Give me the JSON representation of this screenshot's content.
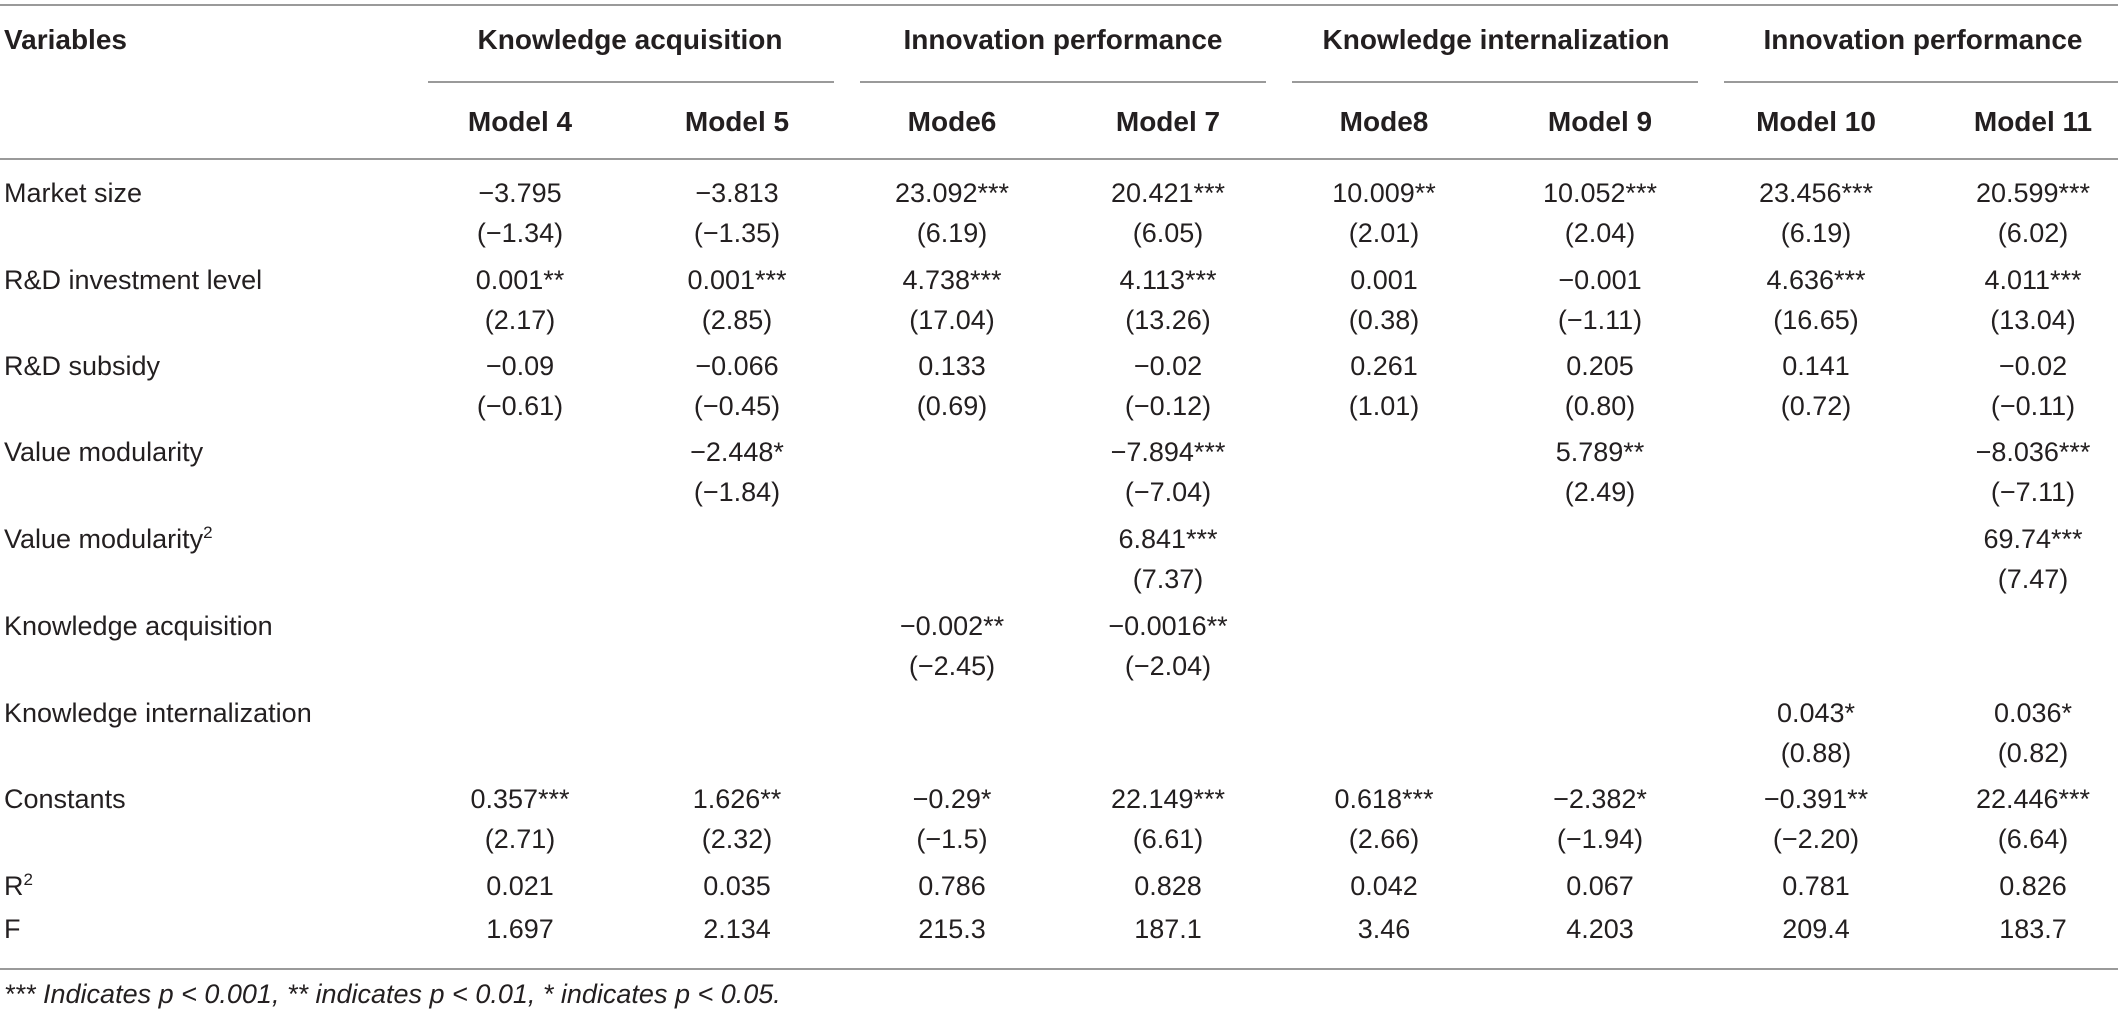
{
  "header": {
    "variables_label": "Variables",
    "groups": [
      "Knowledge acquisition",
      "Innovation performance",
      "Knowledge internalization",
      "Innovation performance"
    ],
    "models": [
      "Model 4",
      "Model 5",
      "Mode6",
      "Model 7",
      "Mode8",
      "Model 9",
      "Model 10",
      "Model 11"
    ]
  },
  "rows": [
    {
      "label": "Market size",
      "coef": [
        "−3.795",
        "−3.813",
        "23.092***",
        "20.421***",
        "10.009**",
        "10.052***",
        "23.456***",
        "20.599***"
      ],
      "t": [
        "(−1.34)",
        "(−1.35)",
        "(6.19)",
        "(6.05)",
        "(2.01)",
        "(2.04)",
        "(6.19)",
        "(6.02)"
      ]
    },
    {
      "label": "R&D investment level",
      "coef": [
        "0.001**",
        "0.001***",
        "4.738***",
        "4.113***",
        "0.001",
        "−0.001",
        "4.636***",
        "4.011***"
      ],
      "t": [
        "(2.17)",
        "(2.85)",
        "(17.04)",
        "(13.26)",
        "(0.38)",
        "(−1.11)",
        "(16.65)",
        "(13.04)"
      ]
    },
    {
      "label": "R&D subsidy",
      "coef": [
        "−0.09",
        "−0.066",
        "0.133",
        "−0.02",
        "0.261",
        "0.205",
        "0.141",
        "−0.02"
      ],
      "t": [
        "(−0.61)",
        "(−0.45)",
        "(0.69)",
        "(−0.12)",
        "(1.01)",
        "(0.80)",
        "(0.72)",
        "(−0.11)"
      ]
    },
    {
      "label": "Value modularity",
      "coef": [
        "",
        "−2.448*",
        "",
        "−7.894***",
        "",
        "5.789**",
        "",
        "−8.036***"
      ],
      "t": [
        "",
        "(−1.84)",
        "",
        "(−7.04)",
        "",
        "(2.49)",
        "",
        "(−7.11)"
      ]
    },
    {
      "label": "Value modularity",
      "sup": "2",
      "coef": [
        "",
        "",
        "",
        "6.841***",
        "",
        "",
        "",
        "69.74***"
      ],
      "t": [
        "",
        "",
        "",
        "(7.37)",
        "",
        "",
        "",
        "(7.47)"
      ]
    },
    {
      "label": "Knowledge acquisition",
      "coef": [
        "",
        "",
        "−0.002**",
        "−0.0016**",
        "",
        "",
        "",
        ""
      ],
      "t": [
        "",
        "",
        "(−2.45)",
        "(−2.04)",
        "",
        "",
        "",
        ""
      ]
    },
    {
      "label": "Knowledge internalization",
      "coef": [
        "",
        "",
        "",
        "",
        "",
        "",
        "0.043*",
        "0.036*"
      ],
      "t": [
        "",
        "",
        "",
        "",
        "",
        "",
        "(0.88)",
        "(0.82)"
      ]
    },
    {
      "label": "Constants",
      "coef": [
        "0.357***",
        "1.626**",
        "−0.29*",
        "22.149***",
        "0.618***",
        "−2.382*",
        "−0.391**",
        "22.446***"
      ],
      "t": [
        "(2.71)",
        "(2.32)",
        "(−1.5)",
        "(6.61)",
        "(2.66)",
        "(−1.94)",
        "(−2.20)",
        "(6.64)"
      ]
    },
    {
      "label": "R",
      "sup": "2",
      "coef": [
        "0.021",
        "0.035",
        "0.786",
        "0.828",
        "0.042",
        "0.067",
        "0.781",
        "0.826"
      ],
      "t": null
    },
    {
      "label": "F",
      "coef": [
        "1.697",
        "2.134",
        "215.3",
        "187.1",
        "3.46",
        "4.203",
        "209.4",
        "183.7"
      ],
      "t": null
    }
  ],
  "footnote": "*** Indicates p < 0.001, ** indicates p < 0.01, * indicates p < 0.05."
}
